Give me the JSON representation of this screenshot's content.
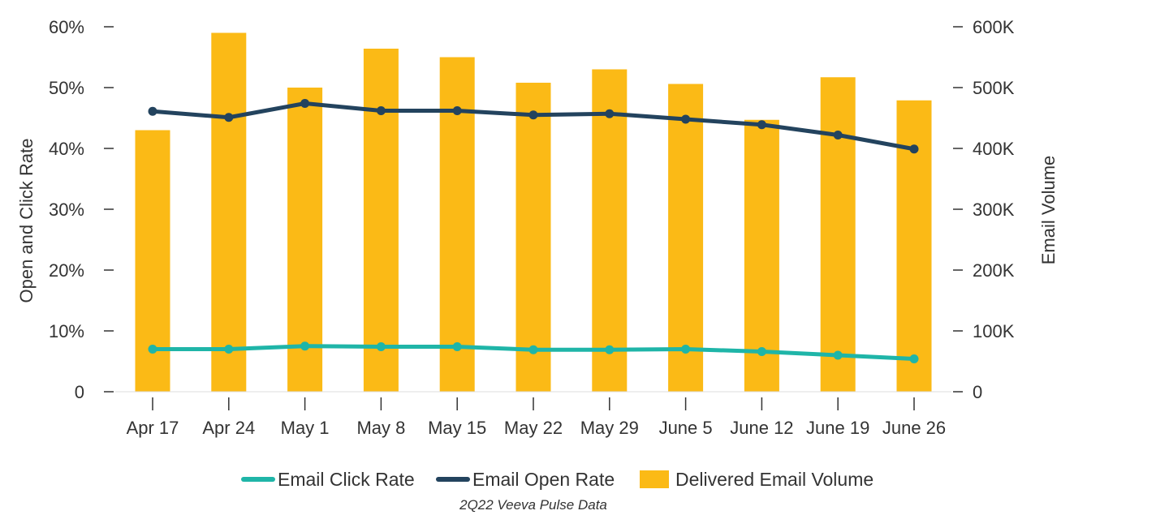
{
  "chart_data": {
    "type": "bar+line",
    "categories": [
      "Apr 17",
      "Apr 24",
      "May 1",
      "May 8",
      "May 15",
      "May 22",
      "May 29",
      "June 5",
      "June 12",
      "June 19",
      "June 26"
    ],
    "bar_series": {
      "name": "Delivered Email Volume",
      "axis": "right",
      "color": "#FBBA16",
      "values": [
        430000,
        590000,
        500000,
        564000,
        550000,
        508000,
        530000,
        506000,
        447000,
        517000,
        479000
      ]
    },
    "line_series": [
      {
        "name": "Email Open Rate",
        "axis": "left",
        "color": "#23435E",
        "values": [
          46.1,
          45.1,
          47.4,
          46.2,
          46.2,
          45.5,
          45.7,
          44.8,
          43.9,
          42.2,
          39.9
        ]
      },
      {
        "name": "Email Click Rate",
        "axis": "left",
        "color": "#1FB5A8",
        "values": [
          7.0,
          7.0,
          7.5,
          7.4,
          7.4,
          6.9,
          6.9,
          7.0,
          6.6,
          6.0,
          5.4
        ]
      }
    ],
    "y_left": {
      "label": "Open and Click Rate",
      "range": [
        0,
        60
      ],
      "ticks": [
        "0",
        "10%",
        "20%",
        "30%",
        "40%",
        "50%",
        "60%"
      ]
    },
    "y_right": {
      "label": "Email Volume",
      "range": [
        0,
        600000
      ],
      "ticks": [
        "0",
        "100K",
        "200K",
        "300K",
        "400K",
        "500K",
        "600K"
      ]
    },
    "legend": {
      "position": "bottom",
      "items": [
        "Email Click Rate",
        "Email Open Rate",
        "Delivered Email Volume"
      ]
    },
    "grid": false,
    "caption": "2Q22 Veeva Pulse Data"
  }
}
